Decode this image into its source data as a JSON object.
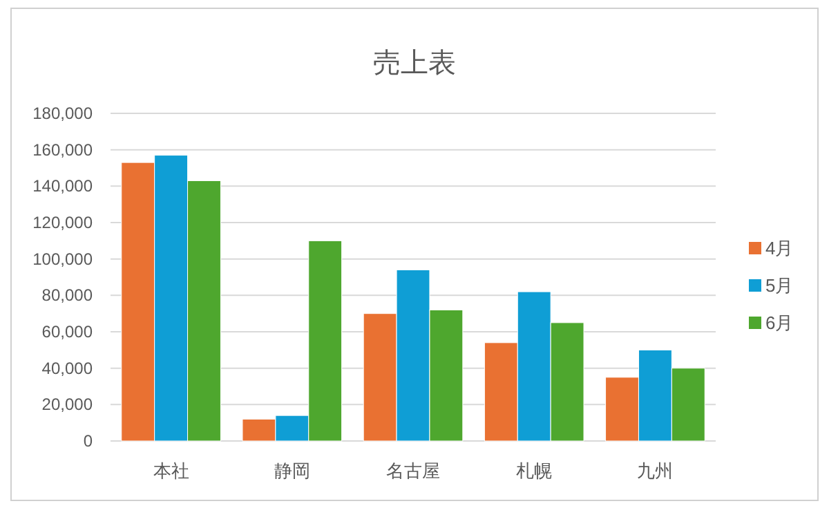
{
  "chart_data": {
    "type": "bar",
    "title": "売上表",
    "categories": [
      "本社",
      "静岡",
      "名古屋",
      "札幌",
      "九州"
    ],
    "series": [
      {
        "name": "4月",
        "color": "#e97132",
        "values": [
          153000,
          12000,
          70000,
          54000,
          35000
        ]
      },
      {
        "name": "5月",
        "color": "#0f9ed5",
        "values": [
          157000,
          14000,
          94000,
          82000,
          50000
        ]
      },
      {
        "name": "6月",
        "color": "#4ea72e",
        "values": [
          143000,
          110000,
          72000,
          65000,
          40000
        ]
      }
    ],
    "ylim": [
      0,
      180000
    ],
    "yticks": [
      0,
      {
        "value": 20000,
        "label": "20,000"
      },
      {
        "value": 40000,
        "label": "40,000"
      },
      {
        "value": 60000,
        "label": "60,000"
      },
      {
        "value": 80000,
        "label": "80,000"
      },
      {
        "value": 100000,
        "label": "100,000"
      },
      {
        "value": 120000,
        "label": "120,000"
      },
      {
        "value": 140000,
        "label": "140,000"
      },
      {
        "value": 160000,
        "label": "160,000"
      },
      {
        "value": 180000,
        "label": "180,000"
      }
    ],
    "grid": "y",
    "legend": "right"
  }
}
